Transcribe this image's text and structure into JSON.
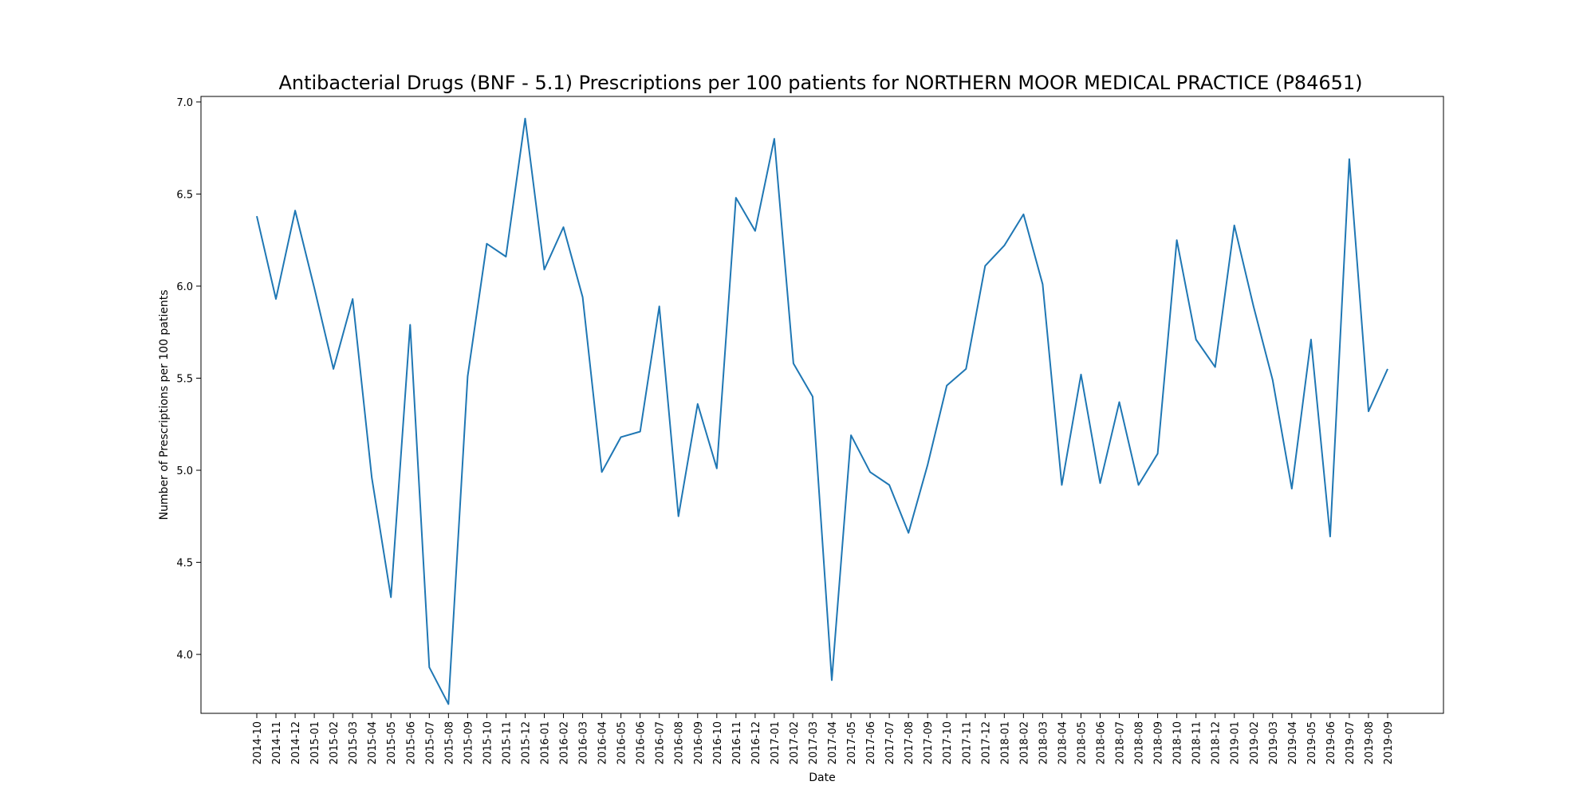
{
  "chart_data": {
    "type": "line",
    "title": "Antibacterial Drugs (BNF - 5.1) Prescriptions per 100 patients for NORTHERN MOOR MEDICAL PRACTICE (P84651)",
    "xlabel": "Date",
    "ylabel": "Number of Prescriptions per 100 patients",
    "ylim": [
      3.68,
      7.03
    ],
    "yticks": [
      "4.0",
      "4.5",
      "5.0",
      "5.5",
      "6.0",
      "6.5",
      "7.0"
    ],
    "grid": false,
    "legend": "none",
    "line_color": "#1f77b4",
    "x": [
      "2014-10",
      "2014-11",
      "2014-12",
      "2015-01",
      "2015-02",
      "2015-03",
      "2015-04",
      "2015-05",
      "2015-06",
      "2015-07",
      "2015-08",
      "2015-09",
      "2015-10",
      "2015-11",
      "2015-12",
      "2016-01",
      "2016-02",
      "2016-03",
      "2016-04",
      "2016-05",
      "2016-06",
      "2016-07",
      "2016-08",
      "2016-09",
      "2016-10",
      "2016-11",
      "2016-12",
      "2017-01",
      "2017-02",
      "2017-03",
      "2017-04",
      "2017-05",
      "2017-06",
      "2017-07",
      "2017-08",
      "2017-09",
      "2017-10",
      "2017-11",
      "2017-12",
      "2018-01",
      "2018-02",
      "2018-03",
      "2018-04",
      "2018-05",
      "2018-06",
      "2018-07",
      "2018-08",
      "2018-09",
      "2018-10",
      "2018-11",
      "2018-12",
      "2019-01",
      "2019-02",
      "2019-03",
      "2019-04",
      "2019-05",
      "2019-06",
      "2019-07",
      "2019-08",
      "2019-09"
    ],
    "y": [
      6.38,
      5.93,
      6.41,
      5.99,
      5.55,
      5.93,
      4.96,
      4.31,
      5.79,
      3.93,
      3.73,
      5.51,
      6.23,
      6.16,
      6.91,
      6.09,
      6.32,
      5.94,
      4.99,
      5.18,
      5.21,
      5.89,
      4.75,
      5.36,
      5.01,
      6.48,
      6.3,
      6.8,
      5.58,
      5.4,
      3.86,
      5.19,
      4.99,
      4.92,
      4.66,
      5.03,
      5.46,
      5.55,
      6.11,
      6.22,
      6.39,
      6.01,
      4.92,
      5.52,
      4.93,
      5.37,
      4.92,
      5.09,
      6.25,
      5.71,
      5.56,
      6.33,
      5.89,
      5.49,
      4.9,
      5.71,
      4.64,
      6.69,
      5.32,
      5.55
    ]
  }
}
